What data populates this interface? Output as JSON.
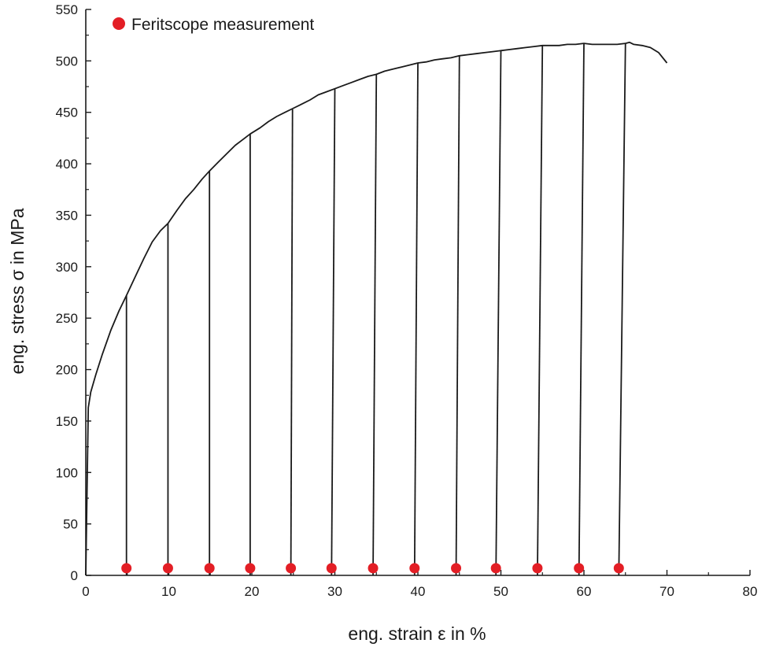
{
  "chart_data": {
    "type": "line",
    "title": "",
    "xlabel": "eng. strain ε in %",
    "ylabel": "eng. stress σ in MPa",
    "xlim": [
      0,
      80
    ],
    "ylim": [
      0,
      550
    ],
    "x_ticks": [
      0,
      10,
      20,
      30,
      40,
      50,
      60,
      70,
      80
    ],
    "y_ticks": [
      0,
      50,
      100,
      150,
      200,
      250,
      300,
      350,
      400,
      450,
      500,
      550
    ],
    "grid": false,
    "legend": {
      "placement": "top-left",
      "entries": [
        {
          "label": "Feritscope measurement",
          "marker": "circle",
          "color": "#e31e25"
        }
      ]
    },
    "colors": {
      "curve": "#1a1a1a",
      "marker": "#e31e25",
      "axis": "#1a1a1a"
    },
    "series": [
      {
        "kind": "envelope",
        "x": [
          0,
          0.3,
          0.6,
          1.2,
          2,
          3,
          4,
          4.9,
          6,
          7,
          8,
          9,
          9.9,
          11,
          12,
          13,
          14,
          14.9,
          16,
          17,
          18,
          19,
          19.8,
          21,
          22,
          23,
          24,
          25,
          26,
          27,
          28,
          29,
          30,
          31,
          32,
          33,
          34,
          35,
          36,
          37,
          38,
          39,
          40,
          41,
          42,
          43,
          44,
          45,
          46,
          47,
          48,
          49,
          50,
          51,
          52,
          53,
          54,
          55,
          56,
          57,
          58,
          59,
          60,
          61,
          62,
          63,
          64,
          65,
          65.5,
          66,
          67,
          68,
          69,
          70
        ],
        "y": [
          0,
          163,
          178,
          195,
          215,
          238,
          257,
          272,
          291,
          308,
          324,
          335,
          342,
          355,
          366,
          375,
          385,
          393,
          402,
          410,
          418,
          424,
          429,
          435,
          441,
          446,
          450,
          454,
          458,
          462,
          467,
          470,
          473,
          476,
          479,
          482,
          485,
          487,
          490,
          492,
          494,
          496,
          498,
          499,
          501,
          502,
          503,
          505,
          506,
          507,
          508,
          509,
          510,
          511,
          512,
          513,
          514,
          515,
          515,
          515,
          516,
          516,
          517,
          516,
          516,
          516,
          516,
          517,
          518,
          516,
          515,
          513,
          508,
          498
        ]
      },
      {
        "kind": "unloading-lines",
        "x_top": [
          4.9,
          9.9,
          14.9,
          19.8,
          24.9,
          30,
          35,
          40,
          45,
          50,
          55,
          60,
          65
        ],
        "y_top": [
          272,
          342,
          393,
          429,
          453,
          473,
          487,
          498,
          505,
          510,
          515,
          517,
          517
        ],
        "x_bottom": [
          4.9,
          9.9,
          14.9,
          19.8,
          24.7,
          29.6,
          34.6,
          39.6,
          44.6,
          49.4,
          54.4,
          59.4,
          64.2
        ]
      },
      {
        "name": "Feritscope measurement",
        "kind": "markers",
        "x": [
          4.9,
          9.9,
          14.9,
          19.8,
          24.7,
          29.6,
          34.6,
          39.6,
          44.6,
          49.4,
          54.4,
          59.4,
          64.2
        ],
        "y": [
          7,
          7,
          7,
          7,
          7,
          7,
          7,
          7,
          7,
          7,
          7,
          7,
          7
        ]
      }
    ]
  }
}
